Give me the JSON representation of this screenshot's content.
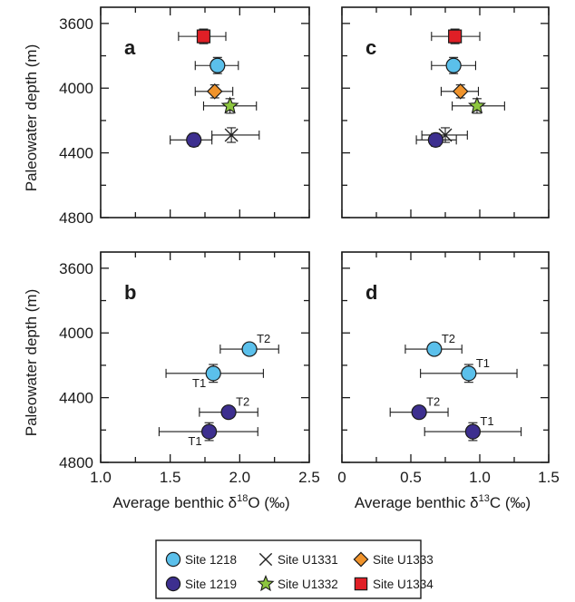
{
  "chart_data": [
    {
      "panel": "a",
      "type": "scatter",
      "xlim": [
        1.0,
        2.5
      ],
      "ylim": [
        4800,
        3500
      ],
      "yticks": [
        3600,
        4000,
        4400,
        4800
      ],
      "ylabel": "Paleowater depth (m)",
      "points": [
        {
          "site": "Site U1334",
          "x": 1.74,
          "y": 3680,
          "xerr_lo": 1.56,
          "xerr_hi": 1.9,
          "yerr": 45,
          "label": ""
        },
        {
          "site": "Site 1218",
          "x": 1.84,
          "y": 3860,
          "xerr_lo": 1.68,
          "xerr_hi": 1.99,
          "yerr": 50,
          "label": ""
        },
        {
          "site": "Site U1333",
          "x": 1.82,
          "y": 4020,
          "xerr_lo": 1.68,
          "xerr_hi": 1.95,
          "yerr": 40,
          "label": ""
        },
        {
          "site": "Site U1332",
          "x": 1.93,
          "y": 4110,
          "xerr_lo": 1.74,
          "xerr_hi": 2.12,
          "yerr": 45,
          "label": ""
        },
        {
          "site": "Site U1331",
          "x": 1.94,
          "y": 4290,
          "xerr_lo": 1.8,
          "xerr_hi": 2.14,
          "yerr": 45,
          "label": ""
        },
        {
          "site": "Site 1219",
          "x": 1.67,
          "y": 4320,
          "xerr_lo": 1.5,
          "xerr_hi": 1.8,
          "yerr": 40,
          "label": ""
        }
      ]
    },
    {
      "panel": "b",
      "type": "scatter",
      "xlim": [
        1.0,
        2.5
      ],
      "ylim": [
        4800,
        3500
      ],
      "yticks": [
        3600,
        4000,
        4400,
        4800
      ],
      "xticks": [
        1.0,
        1.5,
        2.0,
        2.5
      ],
      "xtick_labels": [
        "1.0",
        "1.5",
        "2.0",
        "2.5"
      ],
      "ylabel": "Paleowater depth (m)",
      "xlabel": "Average benthic δ18O (‰)",
      "points": [
        {
          "site": "Site 1218",
          "x": 2.07,
          "y": 4100,
          "xerr_lo": 1.86,
          "xerr_hi": 2.28,
          "yerr": 0,
          "label": "T2",
          "label_side": "right"
        },
        {
          "site": "Site 1218",
          "x": 1.81,
          "y": 4250,
          "xerr_lo": 1.47,
          "xerr_hi": 2.17,
          "yerr": 55,
          "label": "T1",
          "label_side": "left"
        },
        {
          "site": "Site 1219",
          "x": 1.92,
          "y": 4490,
          "xerr_lo": 1.71,
          "xerr_hi": 2.13,
          "yerr": 0,
          "label": "T2",
          "label_side": "right"
        },
        {
          "site": "Site 1219",
          "x": 1.78,
          "y": 4610,
          "xerr_lo": 1.42,
          "xerr_hi": 2.13,
          "yerr": 55,
          "label": "T1",
          "label_side": "left"
        }
      ]
    },
    {
      "panel": "c",
      "type": "scatter",
      "xlim": [
        0,
        1.5
      ],
      "ylim": [
        4800,
        3500
      ],
      "yticks": [
        3600,
        4000,
        4400,
        4800
      ],
      "points": [
        {
          "site": "Site U1334",
          "x": 0.82,
          "y": 3680,
          "xerr_lo": 0.65,
          "xerr_hi": 1.0,
          "yerr": 45,
          "label": ""
        },
        {
          "site": "Site 1218",
          "x": 0.81,
          "y": 3860,
          "xerr_lo": 0.65,
          "xerr_hi": 0.97,
          "yerr": 50,
          "label": ""
        },
        {
          "site": "Site U1333",
          "x": 0.86,
          "y": 4020,
          "xerr_lo": 0.72,
          "xerr_hi": 0.99,
          "yerr": 40,
          "label": ""
        },
        {
          "site": "Site U1332",
          "x": 0.98,
          "y": 4110,
          "xerr_lo": 0.8,
          "xerr_hi": 1.18,
          "yerr": 45,
          "label": ""
        },
        {
          "site": "Site U1331",
          "x": 0.75,
          "y": 4290,
          "xerr_lo": 0.58,
          "xerr_hi": 0.91,
          "yerr": 45,
          "label": ""
        },
        {
          "site": "Site 1219",
          "x": 0.68,
          "y": 4320,
          "xerr_lo": 0.54,
          "xerr_hi": 0.83,
          "yerr": 40,
          "label": ""
        }
      ]
    },
    {
      "panel": "d",
      "type": "scatter",
      "xlim": [
        0,
        1.5
      ],
      "ylim": [
        4800,
        3500
      ],
      "yticks": [
        3600,
        4000,
        4400,
        4800
      ],
      "xticks": [
        0,
        0.5,
        1.0,
        1.5
      ],
      "xtick_labels": [
        "0",
        "0.5",
        "1.0",
        "1.5"
      ],
      "xlabel": "Average benthic δ13C (‰)",
      "points": [
        {
          "site": "Site 1218",
          "x": 0.67,
          "y": 4100,
          "xerr_lo": 0.46,
          "xerr_hi": 0.87,
          "yerr": 0,
          "label": "T2",
          "label_side": "right"
        },
        {
          "site": "Site 1218",
          "x": 0.92,
          "y": 4250,
          "xerr_lo": 0.57,
          "xerr_hi": 1.27,
          "yerr": 55,
          "label": "T1",
          "label_side": "right"
        },
        {
          "site": "Site 1219",
          "x": 0.56,
          "y": 4490,
          "xerr_lo": 0.35,
          "xerr_hi": 0.77,
          "yerr": 0,
          "label": "T2",
          "label_side": "right"
        },
        {
          "site": "Site 1219",
          "x": 0.95,
          "y": 4610,
          "xerr_lo": 0.6,
          "xerr_hi": 1.3,
          "yerr": 55,
          "label": "T1",
          "label_side": "right"
        }
      ]
    }
  ],
  "legend": {
    "placement": "bottom-center",
    "items": [
      {
        "label": "Site 1218",
        "marker": "circle",
        "color": "#5bc0eb"
      },
      {
        "label": "Site U1331",
        "marker": "cross",
        "color": "#222222"
      },
      {
        "label": "Site U1333",
        "marker": "diamond",
        "color": "#f0932b"
      },
      {
        "label": "Site 1219",
        "marker": "circle",
        "color": "#3d2f8f"
      },
      {
        "label": "Site U1332",
        "marker": "star",
        "color": "#8dc63f"
      },
      {
        "label": "Site U1334",
        "marker": "square",
        "color": "#e01f26"
      }
    ]
  },
  "x_title_pieces": {
    "o18": {
      "pre": "Average benthic δ",
      "sup": "18",
      "post": "O (‰)"
    },
    "c13": {
      "pre": "Average benthic δ",
      "sup": "13",
      "post": "C (‰)"
    }
  }
}
